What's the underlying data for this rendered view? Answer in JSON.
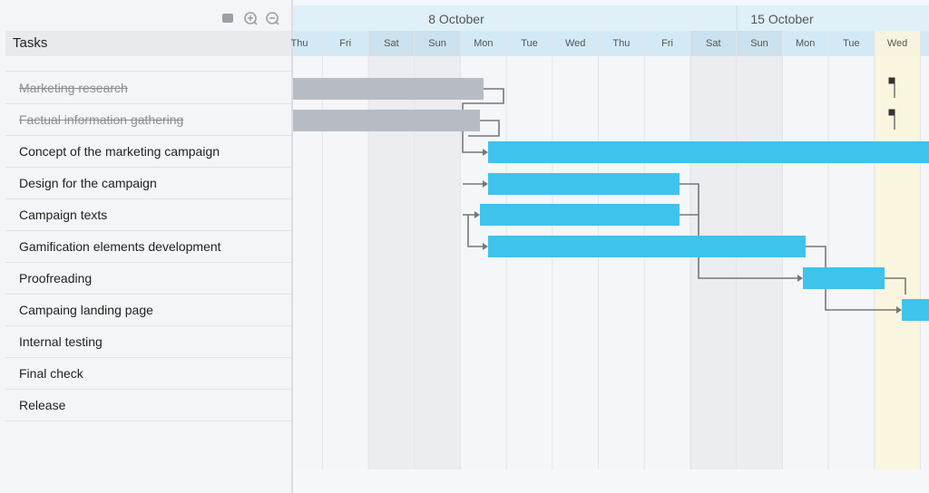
{
  "panel": {
    "header": "Tasks",
    "tasks": [
      {
        "name": "Marketing research",
        "completed": true
      },
      {
        "name": "Factual information gathering",
        "completed": true
      },
      {
        "name": "Concept of the marketing campaign",
        "completed": false
      },
      {
        "name": "Design for the campaign",
        "completed": false
      },
      {
        "name": "Campaign texts",
        "completed": false
      },
      {
        "name": "Gamification elements development",
        "completed": false
      },
      {
        "name": "Proofreading",
        "completed": false
      },
      {
        "name": "Campaing landing page",
        "completed": false
      },
      {
        "name": "Internal testing",
        "completed": false
      },
      {
        "name": "Final check",
        "completed": false
      },
      {
        "name": "Release",
        "completed": false
      }
    ]
  },
  "timeline": {
    "weeks": [
      "8 October",
      "15 October"
    ],
    "days": [
      "Thu",
      "Fri",
      "Sat",
      "Sun",
      "Mon",
      "Tue",
      "Wed",
      "Thu",
      "Fri",
      "Sat",
      "Sun",
      "Mon",
      "Tue",
      "Wed"
    ]
  }
}
